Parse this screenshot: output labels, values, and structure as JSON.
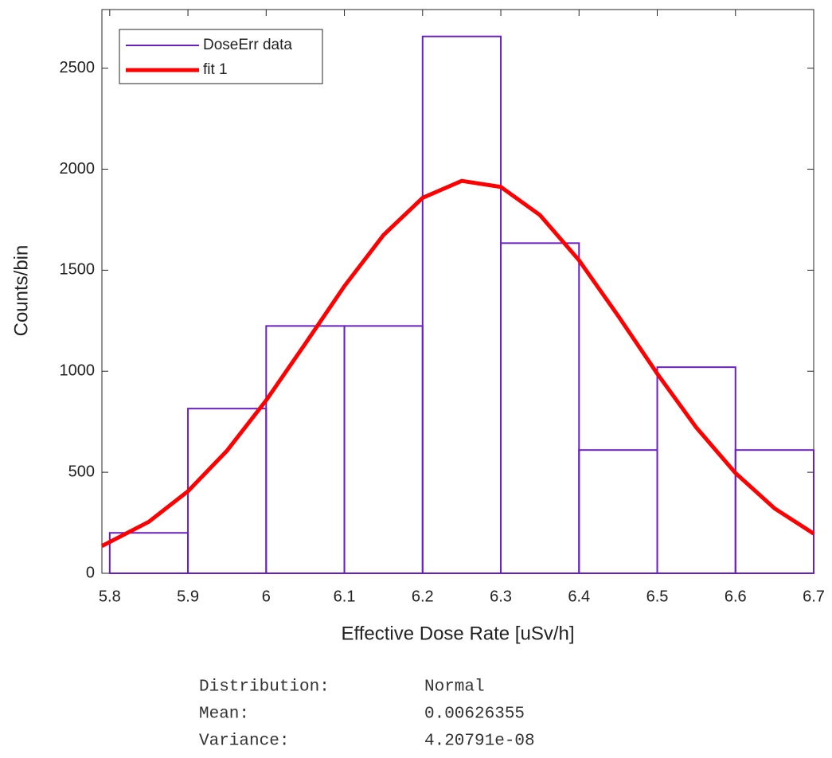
{
  "chart_data": {
    "type": "histogram",
    "x_label": "Effective Dose Rate [uSv/h]",
    "y_label": "Counts/bin",
    "bins": [
      5.8,
      5.9,
      6.0,
      6.1,
      6.2,
      6.3,
      6.4,
      6.5,
      6.6,
      6.7
    ],
    "series": [
      {
        "name": "DoseErr data",
        "color": "#6a1fbf",
        "values": [
          200,
          815,
          1224,
          1224,
          2657,
          1634,
          610,
          1020,
          610
        ]
      },
      {
        "name": "fit 1",
        "color": "#ff0000",
        "type": "line",
        "x": [
          5.79,
          5.85,
          5.9,
          5.95,
          6.0,
          6.05,
          6.1,
          6.15,
          6.2,
          6.25,
          6.3,
          6.35,
          6.4,
          6.45,
          6.5,
          6.55,
          6.6,
          6.65,
          6.7
        ],
        "values": [
          135,
          255,
          406,
          607,
          856,
          1136,
          1421,
          1674,
          1858,
          1942,
          1912,
          1773,
          1549,
          1274,
          988,
          721,
          496,
          321,
          196
        ]
      }
    ],
    "xlim": [
      5.79,
      6.7
    ],
    "ylim": [
      0,
      2790
    ],
    "xticks": [
      5.8,
      5.9,
      6,
      6.1,
      6.2,
      6.3,
      6.4,
      6.5,
      6.6,
      6.7
    ],
    "yticks": [
      0,
      500,
      1000,
      1500,
      2000,
      2500
    ],
    "legend": "upper left"
  },
  "fit_info": [
    [
      "Distribution:",
      "Normal"
    ],
    [
      "Mean:",
      "0.00626355"
    ],
    [
      "Variance:",
      "4.20791e-08"
    ]
  ]
}
